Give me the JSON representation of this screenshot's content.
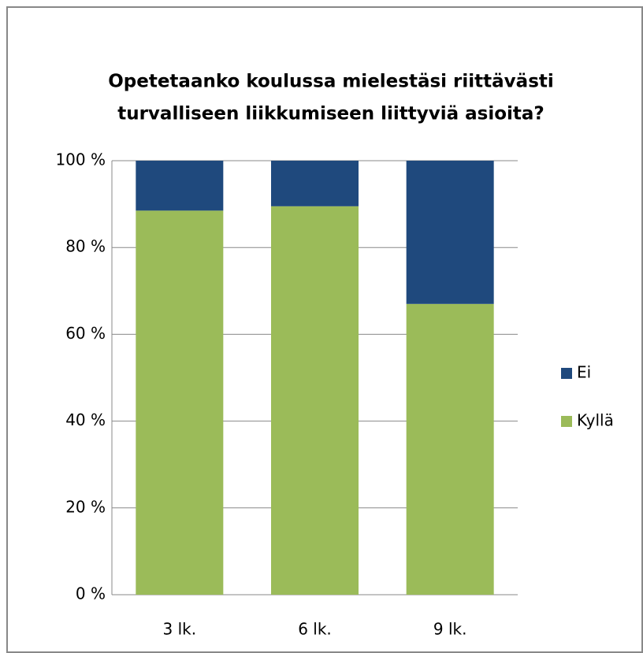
{
  "chart_data": {
    "type": "stacked_bar",
    "title": [
      "Opetetaanko koulussa mielestäsi riittävästi",
      "turvalliseen liikkumiseen liittyviä asioita?"
    ],
    "categories": [
      "3 lk.",
      "6 lk.",
      "9 lk."
    ],
    "series": [
      {
        "name": "Kyllä",
        "color": "#9bbb59",
        "values": [
          88.5,
          89.5,
          67
        ]
      },
      {
        "name": "Ei",
        "color": "#1f497d",
        "values": [
          11.5,
          10.5,
          33
        ]
      }
    ],
    "ylim": [
      0,
      100
    ],
    "yticks": [
      {
        "value": 0,
        "label": "0 %"
      },
      {
        "value": 20,
        "label": "20 %"
      },
      {
        "value": 40,
        "label": "40 %"
      },
      {
        "value": 60,
        "label": "60 %"
      },
      {
        "value": 80,
        "label": "80 %"
      },
      {
        "value": 100,
        "label": "100 %"
      }
    ],
    "grid": true,
    "legend": "right"
  }
}
